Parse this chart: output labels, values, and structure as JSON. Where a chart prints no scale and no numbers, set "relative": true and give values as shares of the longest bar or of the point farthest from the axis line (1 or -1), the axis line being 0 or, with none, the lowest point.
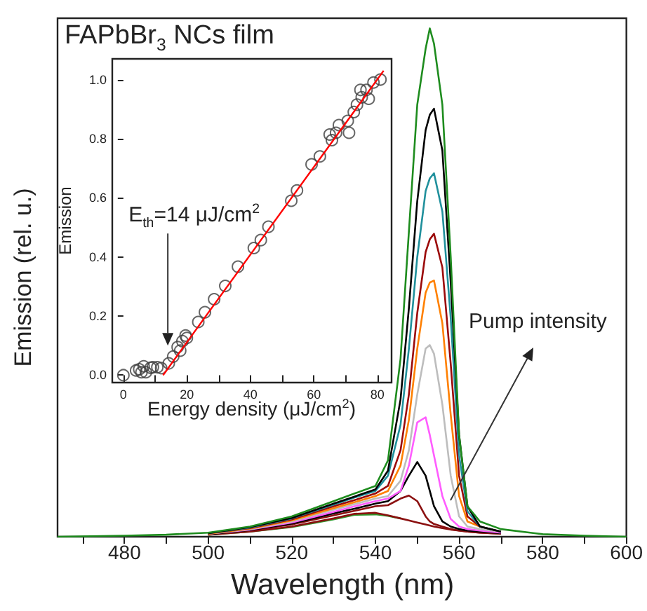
{
  "chart_data": [
    {
      "type": "line",
      "title": "FAPbBr$_{3}$ NCs film",
      "xlabel": "Wavelength (nm)",
      "ylabel": "Emission (rel. u.)",
      "relative": true,
      "marker": "none",
      "grid": false,
      "annotations": [
        "Pump intensity"
      ],
      "xlim": [
        464,
        600
      ],
      "xticks": [
        {
          "value": 470,
          "label": null
        },
        480,
        {
          "value": 490,
          "label": null
        },
        500,
        {
          "value": 510,
          "label": null
        },
        520,
        {
          "value": 530,
          "label": null
        },
        540,
        {
          "value": 550,
          "label": null
        },
        560,
        {
          "value": 570,
          "label": null
        },
        580,
        {
          "value": 590,
          "label": null
        },
        600
      ],
      "x": [
        464,
        480,
        490,
        500,
        510,
        520,
        530,
        535,
        540,
        543,
        546,
        548,
        550,
        552,
        553,
        554,
        556,
        558,
        560,
        562,
        565,
        570,
        580,
        590,
        600
      ],
      "series": [
        {
          "color": "#2e9a2e",
          "values": [
            null,
            null,
            null,
            0.004,
            0.01,
            0.019,
            0.034,
            0.043,
            0.044,
            0.041,
            0.036,
            null,
            null,
            null,
            null,
            null,
            null,
            null,
            null,
            null,
            null,
            null,
            null,
            null,
            null
          ]
        },
        {
          "color": "#8b1010",
          "values": [
            null,
            null,
            null,
            0.004,
            0.01,
            0.02,
            0.036,
            0.045,
            0.047,
            0.042,
            0.036,
            0.032,
            0.028,
            0.024,
            0.022,
            0.02,
            0.017,
            0.014,
            0.012,
            0.01,
            0.008,
            0.006,
            null,
            null,
            null
          ]
        },
        {
          "color": "#8b1010",
          "values": [
            null,
            null,
            null,
            0.005,
            0.012,
            0.024,
            0.042,
            0.051,
            0.06,
            0.062,
            0.075,
            0.081,
            0.07,
            0.04,
            0.03,
            0.025,
            0.02,
            0.015,
            0.012,
            0.01,
            0.008,
            0.006,
            null,
            null,
            null
          ]
        },
        {
          "color": "#000000",
          "values": [
            null,
            null,
            null,
            0.005,
            0.013,
            0.026,
            0.046,
            0.055,
            0.065,
            0.07,
            0.09,
            0.12,
            0.147,
            0.12,
            0.09,
            0.06,
            0.03,
            0.02,
            0.015,
            0.012,
            0.01,
            0.007,
            null,
            null,
            null
          ]
        },
        {
          "color": "#ff5cff",
          "values": [
            null,
            null,
            null,
            0.006,
            0.014,
            0.028,
            0.049,
            0.06,
            0.07,
            0.075,
            0.09,
            0.14,
            0.225,
            0.235,
            0.2,
            0.16,
            0.08,
            0.035,
            0.02,
            0.015,
            0.012,
            0.008,
            null,
            null,
            null
          ]
        },
        {
          "color": "#bdbdbd",
          "values": [
            null,
            null,
            null,
            0.006,
            0.015,
            0.03,
            0.053,
            0.064,
            0.075,
            0.08,
            0.11,
            0.17,
            0.28,
            0.37,
            0.377,
            0.36,
            0.26,
            0.12,
            0.04,
            0.02,
            0.015,
            0.01,
            null,
            null,
            null
          ]
        },
        {
          "color": "#ff8000",
          "values": [
            null,
            null,
            null,
            0.006,
            0.016,
            0.032,
            0.056,
            0.068,
            0.08,
            0.09,
            0.14,
            0.23,
            0.37,
            0.48,
            0.5,
            0.504,
            0.42,
            0.24,
            0.08,
            0.03,
            0.02,
            0.01,
            null,
            null,
            null
          ]
        },
        {
          "color": "#9b0a0a",
          "values": [
            null,
            null,
            null,
            0.007,
            0.017,
            0.034,
            0.06,
            0.072,
            0.085,
            0.1,
            0.17,
            0.28,
            0.44,
            0.56,
            0.585,
            0.596,
            0.53,
            0.34,
            0.12,
            0.04,
            0.02,
            0.01,
            null,
            null,
            null
          ]
        },
        {
          "color": "#20909c",
          "values": [
            null,
            null,
            null,
            0.007,
            0.018,
            0.036,
            0.063,
            0.077,
            0.09,
            0.12,
            0.22,
            0.37,
            0.55,
            0.68,
            0.705,
            0.715,
            0.64,
            0.43,
            0.16,
            0.05,
            0.02,
            0.01,
            null,
            null,
            null
          ]
        },
        {
          "color": "#000000",
          "values": [
            null,
            null,
            null,
            0.007,
            0.019,
            0.037,
            0.065,
            0.079,
            0.093,
            0.13,
            0.27,
            0.45,
            0.66,
            0.8,
            0.83,
            0.842,
            0.76,
            0.5,
            0.2,
            0.06,
            0.02,
            0.01,
            null,
            null,
            null
          ]
        },
        {
          "color": "#1e8c1e",
          "values": [
            0,
            0.002,
            0.004,
            0.008,
            0.02,
            0.04,
            0.07,
            0.085,
            0.1,
            0.15,
            0.35,
            0.6,
            0.85,
            0.96,
            1,
            0.97,
            0.85,
            0.55,
            0.2,
            0.06,
            0.03,
            0.015,
            0.005,
            0.002,
            0
          ]
        }
      ]
    },
    {
      "type": "scatter",
      "xlabel": "Energy density (μJ/cm$^{2}$)",
      "ylabel": "Emission",
      "marker": "circle",
      "grid": false,
      "annotations": [
        {
          "text": "E$_{th}$=14 μJ/cm$^{2}$",
          "x": 14,
          "y": 0.1
        }
      ],
      "xlim": [
        -3.5,
        84.5
      ],
      "xticks": [
        0,
        {
          "value": 10,
          "label": null
        },
        20,
        {
          "value": 30,
          "label": null
        },
        40,
        {
          "value": 50,
          "label": null
        },
        60,
        {
          "value": 70,
          "label": null
        },
        80
      ],
      "ylim": [
        -0.025,
        1.07
      ],
      "yticks": [
        {
          "value": 0,
          "label": "0.0"
        },
        {
          "value": 0.2,
          "label": "0.2"
        },
        {
          "value": 0.4,
          "label": "0.4"
        },
        {
          "value": 0.6,
          "label": "0.6"
        },
        {
          "value": 0.8,
          "label": "0.8"
        },
        {
          "value": 1,
          "label": "1.0"
        }
      ],
      "series": [
        {
          "color": "#404040",
          "x": [
            0,
            4,
            5,
            5.7,
            6.4,
            7.1,
            8.6,
            9.3,
            10.7,
            11.9,
            14.3,
            15.7,
            17.1,
            17.9,
            18.6,
            19.6,
            20,
            23.6,
            25.7,
            28.6,
            32.1,
            36.1,
            41.1,
            43.3,
            45.7,
            52.9,
            54.7,
            59.3,
            61.9,
            65,
            65.7,
            67,
            67.9,
            70.7,
            71.1,
            72.6,
            73.6,
            74.7,
            75.1,
            76.6,
            77.3,
            78.8,
            81
          ],
          "values": [
            0,
            0.016,
            0.02,
            0.01,
            0.03,
            0.01,
            0.025,
            0.027,
            0.027,
            0.024,
            0.04,
            0.063,
            0.095,
            0.083,
            0.115,
            0.134,
            0.126,
            0.18,
            0.213,
            0.257,
            0.302,
            0.367,
            0.43,
            0.457,
            0.502,
            0.59,
            0.625,
            0.713,
            0.74,
            0.814,
            0.795,
            0.82,
            0.846,
            0.86,
            0.82,
            0.89,
            0.915,
            0.965,
            0.94,
            0.965,
            0.935,
            0.99,
            1
          ]
        },
        {
          "type": "line",
          "marker": "none",
          "color": "#ff0000",
          "x": [
            12.5,
            82
          ],
          "values": [
            0,
            1.03
          ]
        }
      ]
    }
  ]
}
